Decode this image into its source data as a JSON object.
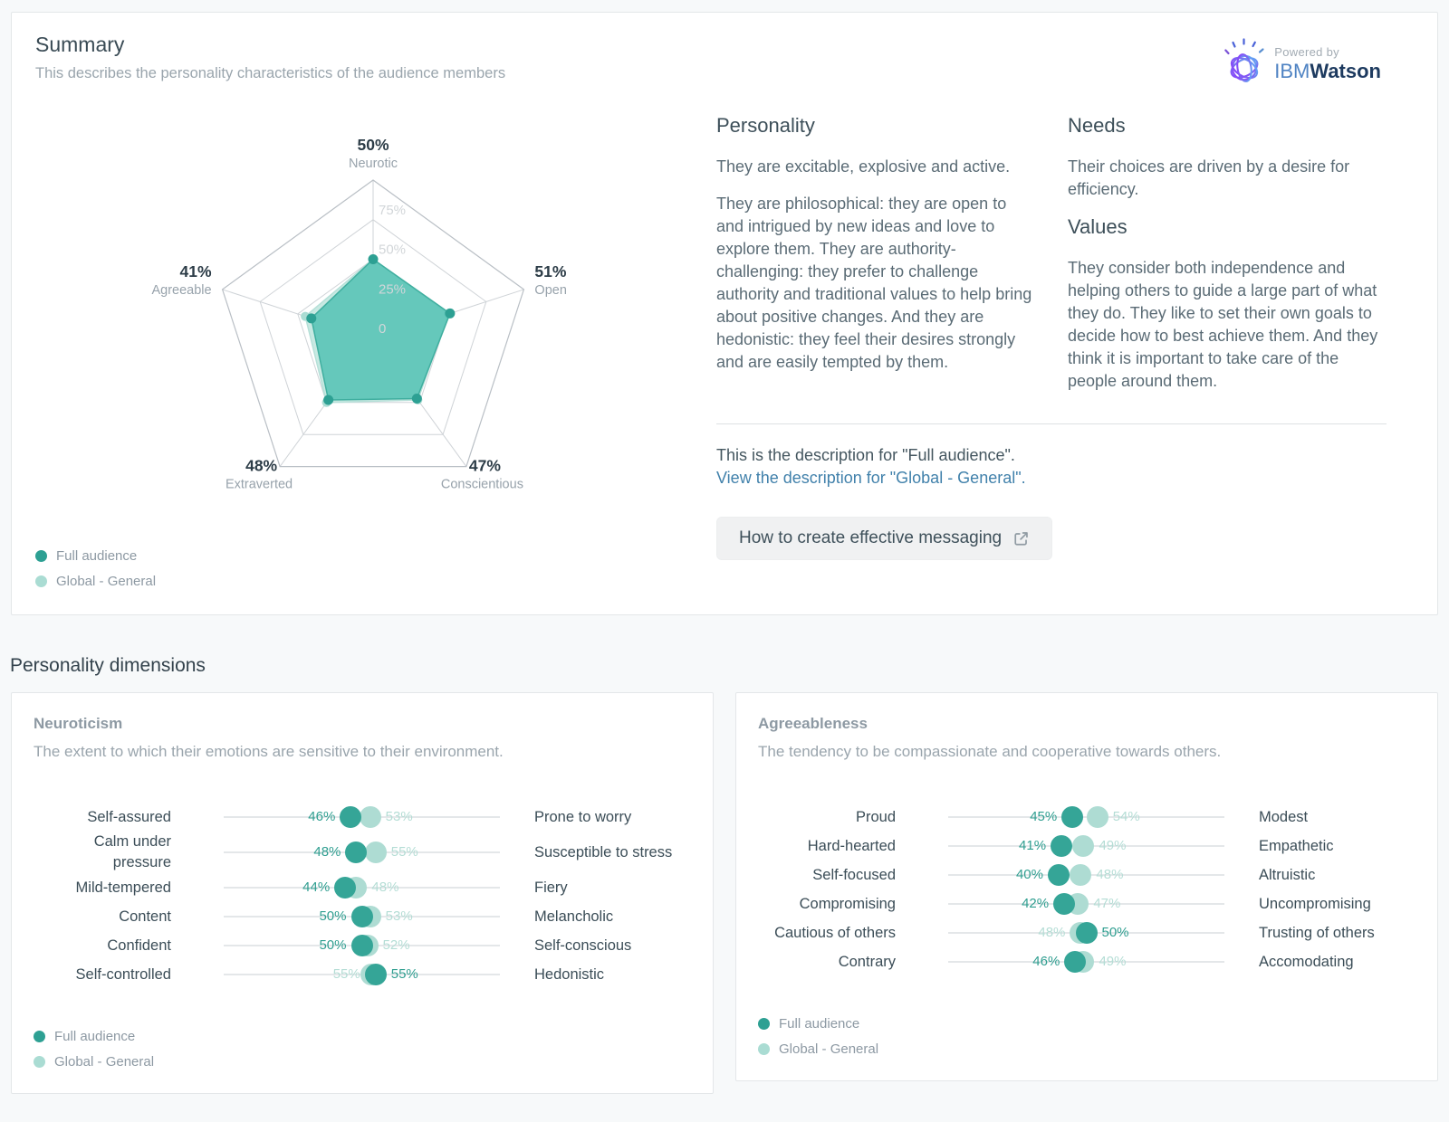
{
  "summary": {
    "title": "Summary",
    "subtitle": "This describes the personality characteristics of the audience members",
    "powered_by": "Powered by",
    "brand_ibm": "IBM",
    "brand_watson": "Watson"
  },
  "personality_section": {
    "heading": "Personality",
    "paragraphs": [
      "They are excitable, explosive and active.",
      "They are philosophical: they are open to and intrigued by new ideas and love to explore them. They are authority-challenging: they prefer to challenge authority and traditional values to help bring about positive changes. And they are hedonistic: they feel their desires strongly and are easily tempted by them."
    ]
  },
  "needs_section": {
    "heading": "Needs",
    "body": "Their choices are driven by a desire for efficiency."
  },
  "values_section": {
    "heading": "Values",
    "body": "They consider both independence and helping others to guide a large part of what they do. They like to set their own goals to decide how to best achieve them. And they think it is important to take care of the people around them."
  },
  "description": {
    "current": "This is the description for \"Full audience\".",
    "link": "View the description for \"Global - General\"."
  },
  "cta": {
    "label": "How to create effective messaging"
  },
  "dims_heading": "Personality dimensions",
  "legend": {
    "full": "Full audience",
    "global": "Global - General"
  },
  "colors": {
    "full": "#2da093",
    "global": "#aadcd3",
    "radar_fill": "rgba(84,194,180,0.85)",
    "radar_stroke": "#3fae9f",
    "global_fill": "#c8e9e2",
    "grid": "#cfd3d7",
    "grid_outer": "#b9bfc5",
    "link": "#4181ab"
  },
  "chart_data": [
    {
      "type": "radar",
      "categories": [
        "Neurotic",
        "Open",
        "Conscientious",
        "Extraverted",
        "Agreeable"
      ],
      "series": [
        {
          "name": "Full audience",
          "values": [
            50,
            51,
            47,
            48,
            41
          ]
        },
        {
          "name": "Global - General",
          "values": [
            50,
            50,
            48,
            50,
            45
          ],
          "note": "mostly hidden behind Full audience polygon; values estimated from visible slivers"
        }
      ],
      "axis_max": 100,
      "tick_values": [
        75,
        50,
        25,
        0
      ],
      "tick_labels": [
        "75%",
        "50%",
        "25%",
        "0"
      ],
      "vertex_labels": [
        "50%",
        "51%",
        "47%",
        "48%",
        "41%"
      ],
      "legend_position": "bottom-left",
      "grid": true
    },
    {
      "type": "dotplot",
      "title": "Neuroticism",
      "subtitle": "The extent to which their emotions are sensitive to their environment.",
      "axis_range": [
        0,
        100
      ],
      "series_names": [
        "Full audience",
        "Global - General"
      ],
      "rows": [
        {
          "left": "Self-assured",
          "right": "Prone to worry",
          "full": 46,
          "global": 53
        },
        {
          "left": "Calm under pressure",
          "right": "Susceptible to stress",
          "full": 48,
          "global": 55
        },
        {
          "left": "Mild-tempered",
          "right": "Fiery",
          "full": 44,
          "global": 48
        },
        {
          "left": "Content",
          "right": "Melancholic",
          "full": 50,
          "global": 53
        },
        {
          "left": "Confident",
          "right": "Self-conscious",
          "full": 50,
          "global": 52
        },
        {
          "left": "Self-controlled",
          "right": "Hedonistic",
          "full": 55,
          "global": 55
        }
      ]
    },
    {
      "type": "dotplot",
      "title": "Agreeableness",
      "subtitle": "The tendency to be compassionate and cooperative towards others.",
      "axis_range": [
        0,
        100
      ],
      "series_names": [
        "Full audience",
        "Global - General"
      ],
      "rows": [
        {
          "left": "Proud",
          "right": "Modest",
          "full": 45,
          "global": 54
        },
        {
          "left": "Hard-hearted",
          "right": "Empathetic",
          "full": 41,
          "global": 49
        },
        {
          "left": "Self-focused",
          "right": "Altruistic",
          "full": 40,
          "global": 48
        },
        {
          "left": "Compromising",
          "right": "Uncompromising",
          "full": 42,
          "global": 47
        },
        {
          "left": "Cautious of others",
          "right": "Trusting of others",
          "full": 50,
          "global": 48
        },
        {
          "left": "Contrary",
          "right": "Accomodating",
          "full": 46,
          "global": 49
        }
      ]
    }
  ]
}
